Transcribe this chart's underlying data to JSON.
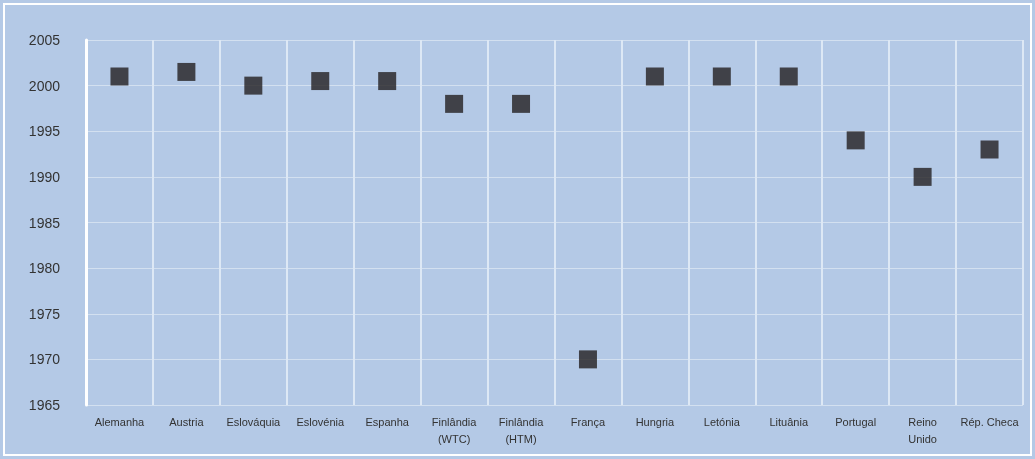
{
  "chart_data": {
    "type": "scatter",
    "categories": [
      "Alemanha",
      "Austria",
      "Eslováquia",
      "Eslovénia",
      "Espanha",
      "Finlândia\n(WTC)",
      "Finlândia\n(HTM)",
      "França",
      "Hungria",
      "Letónia",
      "Lituânia",
      "Portugal",
      "Reino\nUnido",
      "Rép. Checa"
    ],
    "values": [
      2001,
      2001.5,
      2000,
      2000.5,
      2000.5,
      1998,
      1998,
      1970,
      2001,
      2001,
      2001,
      1994,
      1990,
      1993
    ],
    "color": "#231f20",
    "ylim": [
      1965,
      2005
    ],
    "yticks": [
      1965,
      1970,
      1975,
      1980,
      1985,
      1990,
      1995,
      2000,
      2005
    ],
    "grid": true,
    "marker": "square"
  }
}
